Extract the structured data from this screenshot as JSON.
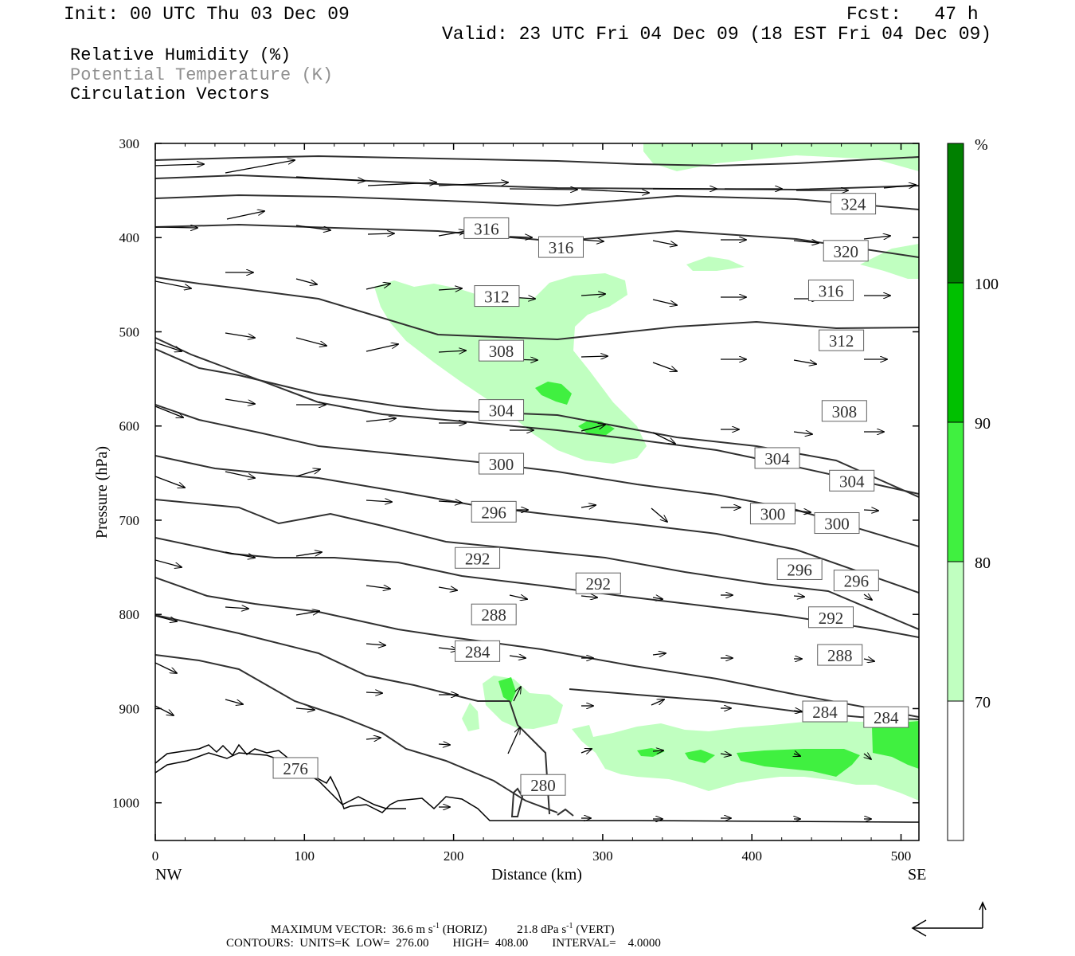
{
  "header": {
    "init": "Init: 00 UTC Thu 03 Dec 09",
    "fcst": "Fcst:   47 h",
    "valid": "Valid: 23 UTC Fri 04 Dec 09 (18 EST Fri 04 Dec 09)"
  },
  "legend": {
    "rh": "Relative Humidity (%)",
    "theta": "Potential Temperature (K)",
    "vectors": "Circulation Vectors"
  },
  "colors": {
    "rh70": "#c0ffc0",
    "rh80": "#40f040",
    "rh90": "#00c000",
    "rh100": "#008000",
    "contour": "#303030",
    "theta_legend": "#909090"
  },
  "footer": {
    "max_vector_label": "MAXIMUM VECTOR:",
    "horiz_value": "36.6 m s",
    "horiz_unit": "(HORIZ)",
    "vert_value": "21.8 dPa s",
    "vert_unit": "(VERT)",
    "exp": "-1",
    "contours": "CONTOURS:  UNITS=K  LOW=  276.00        HIGH=  408.00        INTERVAL=    4.0000"
  },
  "chart_data": {
    "type": "cross-section",
    "xlabel": "Distance (km)",
    "ylabel": "Pressure (hPa)",
    "xlim": [
      0,
      512
    ],
    "ylim": [
      1040,
      300
    ],
    "x_ticks": [
      0,
      100,
      200,
      300,
      400,
      500
    ],
    "y_ticks": [
      300,
      400,
      500,
      600,
      700,
      800,
      900,
      1000
    ],
    "x_end_labels": {
      "left": "NW",
      "right": "SE"
    },
    "colorbar": {
      "unit": "%",
      "ticks": [
        70,
        80,
        90,
        100
      ]
    },
    "contour_labels": [
      {
        "value": "324",
        "x": 468,
        "p": 364
      },
      {
        "value": "316",
        "x": 222,
        "p": 390
      },
      {
        "value": "316",
        "x": 272,
        "p": 410
      },
      {
        "value": "320",
        "x": 463,
        "p": 414
      },
      {
        "value": "316",
        "x": 453,
        "p": 456
      },
      {
        "value": "312",
        "x": 229,
        "p": 462
      },
      {
        "value": "312",
        "x": 460,
        "p": 509
      },
      {
        "value": "308",
        "x": 232,
        "p": 520
      },
      {
        "value": "304",
        "x": 232,
        "p": 583
      },
      {
        "value": "308",
        "x": 462,
        "p": 584
      },
      {
        "value": "300",
        "x": 232,
        "p": 640
      },
      {
        "value": "304",
        "x": 417,
        "p": 634
      },
      {
        "value": "304",
        "x": 467,
        "p": 658
      },
      {
        "value": "296",
        "x": 227,
        "p": 691
      },
      {
        "value": "300",
        "x": 414,
        "p": 693
      },
      {
        "value": "300",
        "x": 457,
        "p": 703
      },
      {
        "value": "292",
        "x": 216,
        "p": 740
      },
      {
        "value": "292",
        "x": 297,
        "p": 767
      },
      {
        "value": "296",
        "x": 432,
        "p": 752
      },
      {
        "value": "296",
        "x": 470,
        "p": 764
      },
      {
        "value": "288",
        "x": 227,
        "p": 800
      },
      {
        "value": "292",
        "x": 453,
        "p": 803
      },
      {
        "value": "284",
        "x": 216,
        "p": 839
      },
      {
        "value": "288",
        "x": 459,
        "p": 843
      },
      {
        "value": "284",
        "x": 449,
        "p": 903
      },
      {
        "value": "284",
        "x": 490,
        "p": 909
      },
      {
        "value": "276",
        "x": 94,
        "p": 963
      },
      {
        "value": "280",
        "x": 260,
        "p": 981
      }
    ]
  }
}
